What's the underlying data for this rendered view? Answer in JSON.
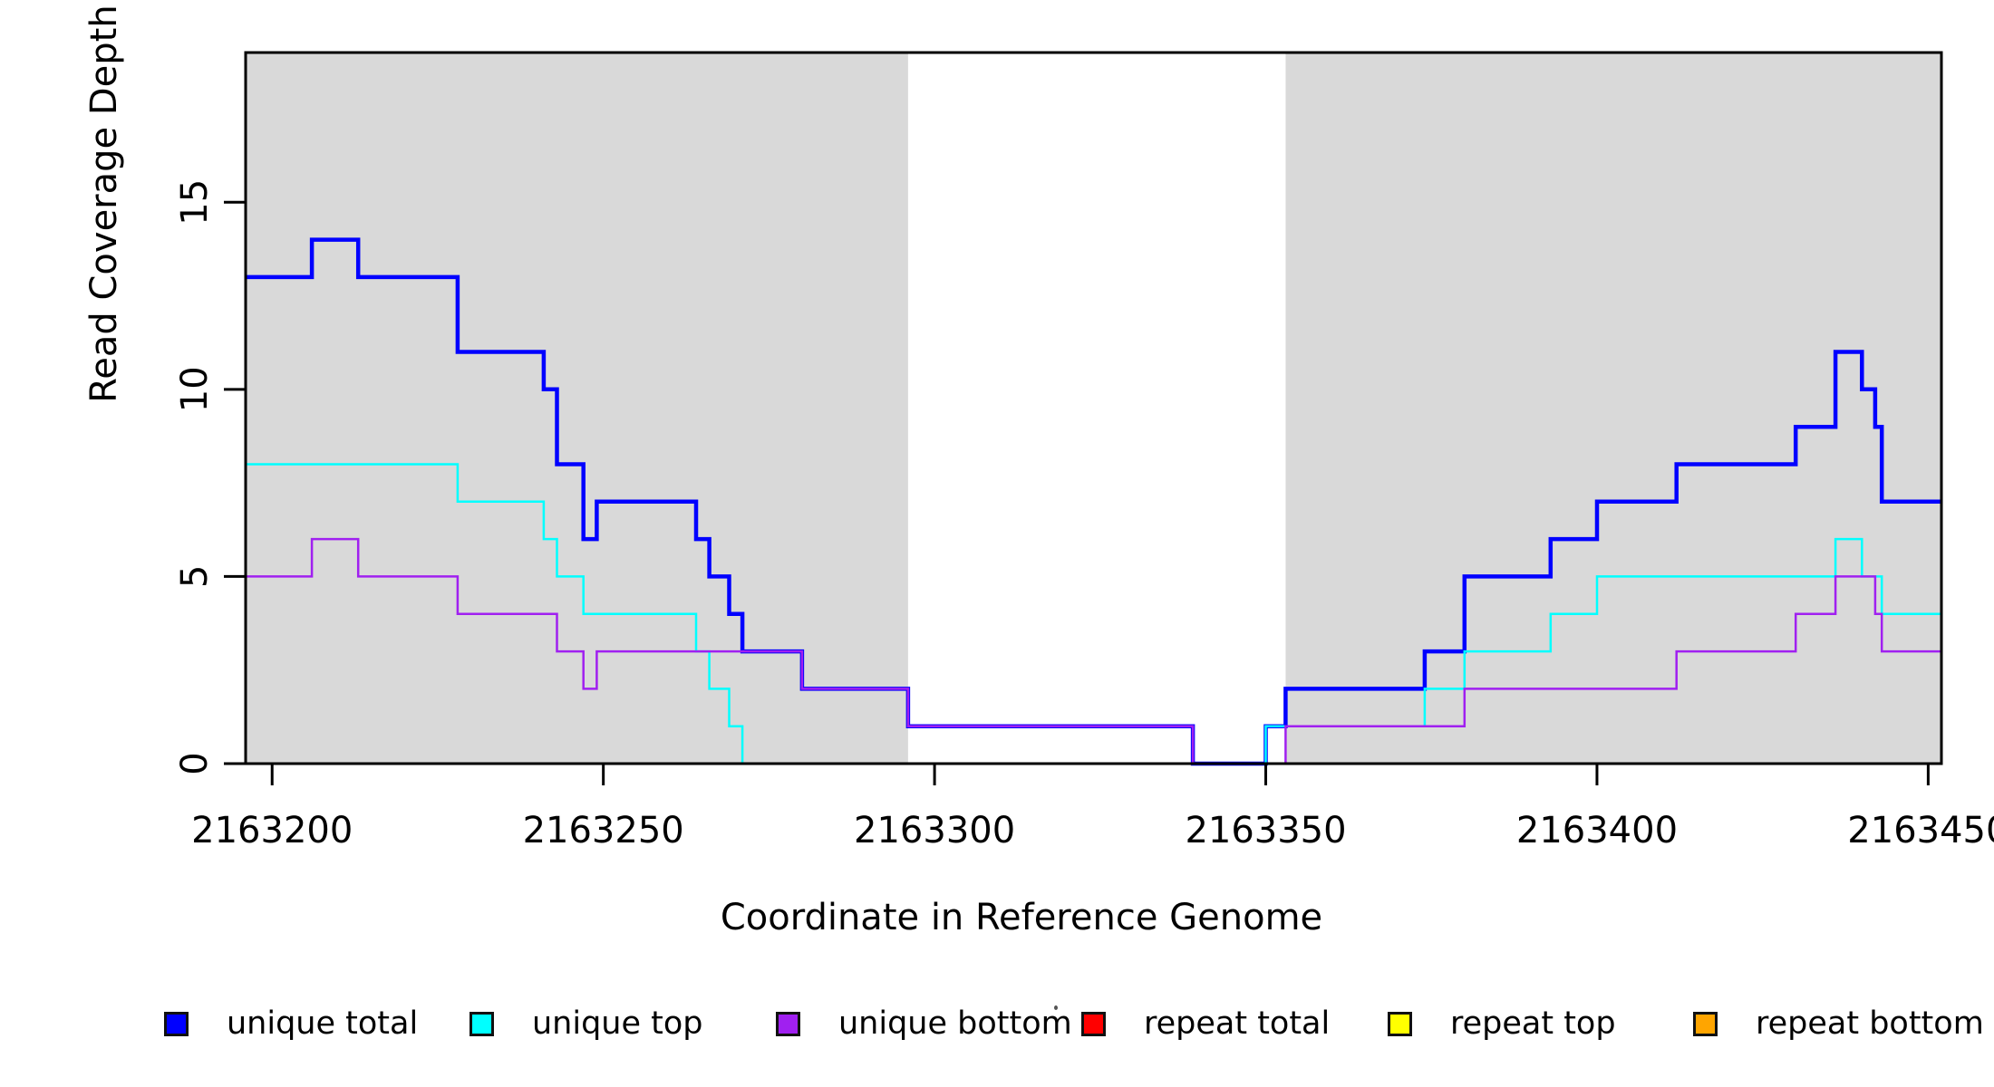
{
  "chart_data": {
    "type": "line",
    "subtype": "step",
    "title": "",
    "xlabel": "Coordinate in Reference Genome",
    "ylabel": "Read Coverage Depth",
    "xlim": [
      2163196,
      2163452
    ],
    "ylim": [
      0,
      19
    ],
    "x_ticks": [
      2163200,
      2163250,
      2163300,
      2163350,
      2163400,
      2163450
    ],
    "x_tick_labels": [
      "2163200",
      "2163250",
      "2163300",
      "2163350",
      "2163400",
      "2163450"
    ],
    "y_ticks": [
      0,
      5,
      10,
      15
    ],
    "y_tick_labels": [
      "0",
      "5",
      "10",
      "15"
    ],
    "grid": false,
    "background_color": "#ffffff",
    "plot_border_color": "#000000",
    "shade_color": "#d9d9d9",
    "shaded_regions": [
      {
        "from": 2163196,
        "to": 2163296
      },
      {
        "from": 2163353,
        "to": 2163452
      }
    ],
    "legend_position": "bottom",
    "series": [
      {
        "name": "repeat total",
        "color": "#FF0000",
        "width": 3,
        "steps": [
          [
            2163196,
            0
          ],
          [
            2163452,
            0
          ]
        ]
      },
      {
        "name": "repeat top",
        "color": "#FFFF00",
        "width": 3,
        "steps": [
          [
            2163196,
            0
          ],
          [
            2163452,
            0
          ]
        ]
      },
      {
        "name": "repeat bottom",
        "color": "#FFA500",
        "width": 3,
        "steps": [
          [
            2163196,
            0
          ],
          [
            2163452,
            0
          ]
        ]
      },
      {
        "name": "unique total",
        "color": "#0000FF",
        "width": 4.5,
        "steps": [
          [
            2163196,
            13
          ],
          [
            2163206,
            14
          ],
          [
            2163213,
            13
          ],
          [
            2163228,
            11
          ],
          [
            2163241,
            10
          ],
          [
            2163243,
            8
          ],
          [
            2163247,
            6
          ],
          [
            2163249,
            7
          ],
          [
            2163264,
            6
          ],
          [
            2163266,
            5
          ],
          [
            2163269,
            4
          ],
          [
            2163271,
            3
          ],
          [
            2163280,
            2
          ],
          [
            2163296,
            1
          ],
          [
            2163339,
            0
          ],
          [
            2163350,
            1
          ],
          [
            2163353,
            2
          ],
          [
            2163374,
            3
          ],
          [
            2163380,
            5
          ],
          [
            2163393,
            6
          ],
          [
            2163400,
            7
          ],
          [
            2163412,
            8
          ],
          [
            2163430,
            9
          ],
          [
            2163436,
            11
          ],
          [
            2163440,
            10
          ],
          [
            2163442,
            9
          ],
          [
            2163443,
            7
          ],
          [
            2163452,
            7
          ]
        ]
      },
      {
        "name": "unique top",
        "color": "#00FFFF",
        "width": 2.5,
        "steps": [
          [
            2163196,
            8
          ],
          [
            2163228,
            7
          ],
          [
            2163241,
            6
          ],
          [
            2163243,
            5
          ],
          [
            2163247,
            4
          ],
          [
            2163264,
            3
          ],
          [
            2163266,
            2
          ],
          [
            2163269,
            1
          ],
          [
            2163271,
            0
          ],
          [
            2163350,
            1
          ],
          [
            2163374,
            2
          ],
          [
            2163380,
            3
          ],
          [
            2163393,
            4
          ],
          [
            2163400,
            5
          ],
          [
            2163436,
            6
          ],
          [
            2163440,
            5
          ],
          [
            2163443,
            4
          ],
          [
            2163452,
            4
          ]
        ]
      },
      {
        "name": "unique bottom",
        "color": "#A020F0",
        "width": 2.5,
        "steps": [
          [
            2163196,
            5
          ],
          [
            2163206,
            6
          ],
          [
            2163213,
            5
          ],
          [
            2163228,
            4
          ],
          [
            2163243,
            3
          ],
          [
            2163247,
            2
          ],
          [
            2163249,
            3
          ],
          [
            2163280,
            2
          ],
          [
            2163296,
            1
          ],
          [
            2163339,
            0
          ],
          [
            2163353,
            1
          ],
          [
            2163380,
            2
          ],
          [
            2163412,
            3
          ],
          [
            2163430,
            4
          ],
          [
            2163436,
            5
          ],
          [
            2163442,
            4
          ],
          [
            2163443,
            3
          ],
          [
            2163452,
            3
          ]
        ]
      }
    ],
    "legend": [
      {
        "label": "unique total",
        "color": "#0000FF"
      },
      {
        "label": "unique top",
        "color": "#00FFFF"
      },
      {
        "label": "unique bottom",
        "color": "#A020F0"
      },
      {
        "label": "repeat total",
        "color": "#FF0000"
      },
      {
        "label": "repeat top",
        "color": "#FFFF00"
      },
      {
        "label": "repeat bottom",
        "color": "#FFA500"
      }
    ]
  }
}
